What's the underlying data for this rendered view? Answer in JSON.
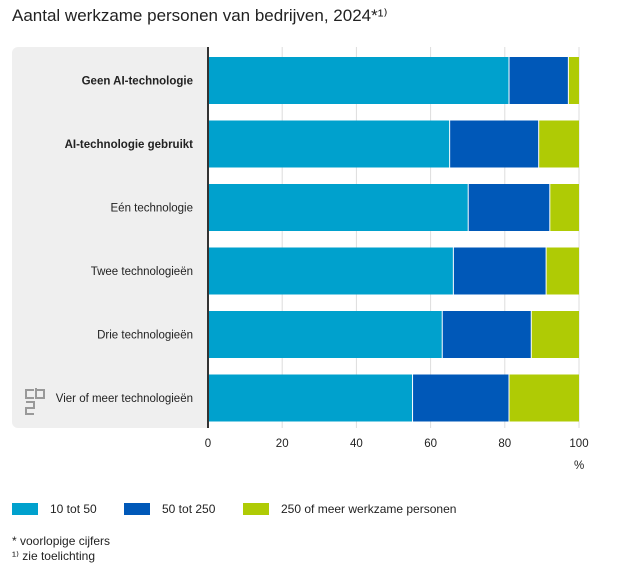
{
  "title": "Aantal werkzame personen van bedrijven, 2024*¹⁾",
  "chart_data": {
    "type": "bar",
    "orientation": "horizontal",
    "stacked": true,
    "title": "Aantal werkzame personen van bedrijven, 2024*¹⁾",
    "categories": [
      "Geen AI-technologie",
      "AI-technologie gebruikt",
      "Eén technologie",
      "Twee technologieën",
      "Drie technologieën",
      "Vier of meer technologieën"
    ],
    "bold_categories": [
      true,
      true,
      false,
      false,
      false,
      false
    ],
    "series": [
      {
        "name": "10 tot 50",
        "color": "#00a1cd",
        "values": [
          81,
          65,
          70,
          66,
          63,
          55
        ]
      },
      {
        "name": "50 tot 250",
        "color": "#0058b8",
        "values": [
          16,
          24,
          22,
          25,
          24,
          26
        ]
      },
      {
        "name": "250 of meer werkzame personen",
        "color": "#afcb05",
        "values": [
          3,
          11,
          8,
          9,
          13,
          19
        ]
      }
    ],
    "xlim": [
      0,
      100
    ],
    "xticks": [
      "0",
      "20",
      "40",
      "60",
      "80",
      "100"
    ],
    "xlabel": "%",
    "grid": true,
    "legend": "bottom"
  },
  "notes": [
    "* voorlopige cijfers",
    "¹⁾ zie toelichting"
  ],
  "logo": "cbs"
}
